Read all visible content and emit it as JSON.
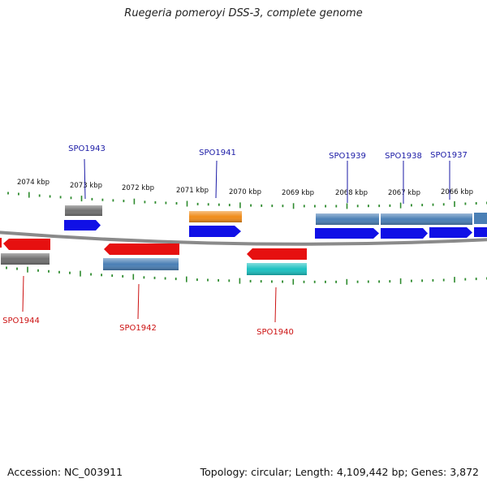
{
  "title": "Ruegeria pomeroyi DSS-3, complete genome",
  "footer": {
    "accession": "Accession: NC_003911",
    "topology": "Topology: circular; Length: 4,109,442 bp; Genes: 3,872"
  },
  "colors": {
    "backbone": "#8a8a8a",
    "tick": "#2e8b2e",
    "label_forward": "#1a1aa6",
    "label_reverse": "#cc1111",
    "gene_blue": "#1010e6",
    "gene_red": "#e61010",
    "gene_steel": "#4a7fb5",
    "gene_gray": "#707070",
    "gene_orange": "#f08c1a",
    "gene_cyan": "#1cc0c0"
  },
  "scale_labels": [
    "2074 kbp",
    "2073 kbp",
    "2072 kbp",
    "2071 kbp",
    "2070 kbp",
    "2069 kbp",
    "2068 kbp",
    "2067 kbp",
    "2066 kbp"
  ],
  "gene_labels": [
    {
      "name": "SPO1943",
      "strand": "forward"
    },
    {
      "name": "SPO1941",
      "strand": "forward"
    },
    {
      "name": "SPO1939",
      "strand": "forward"
    },
    {
      "name": "SPO1938",
      "strand": "forward"
    },
    {
      "name": "SPO1937",
      "strand": "forward"
    },
    {
      "name": "SPO1944",
      "strand": "reverse"
    },
    {
      "name": "SPO1942",
      "strand": "reverse"
    },
    {
      "name": "SPO1940",
      "strand": "reverse"
    }
  ]
}
